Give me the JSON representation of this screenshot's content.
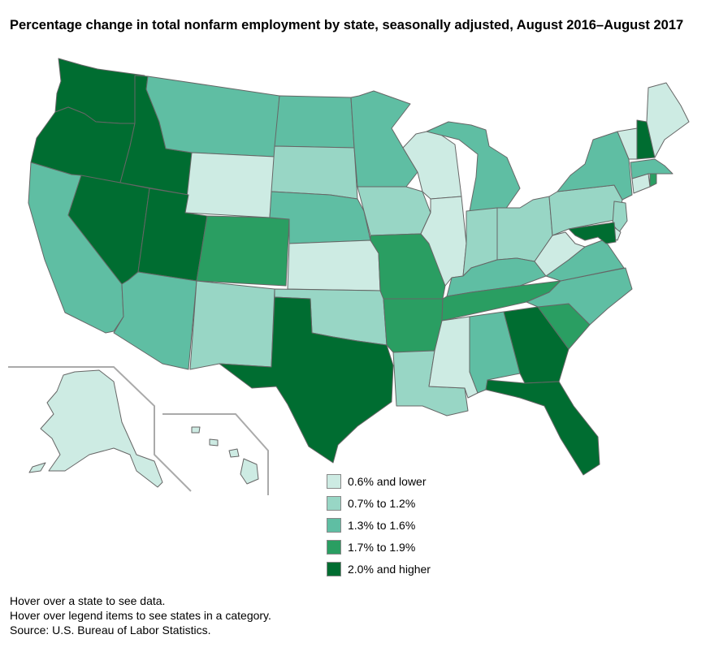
{
  "title": "Percentage change in total nonfarm employment by state, seasonally adjusted, August 2016–August 2017",
  "legend": [
    {
      "label": "0.6% and lower",
      "color": "#cdebe3"
    },
    {
      "label": "0.7% to 1.2%",
      "color": "#98d6c5"
    },
    {
      "label": "1.3% to 1.6%",
      "color": "#5fbea3"
    },
    {
      "label": "1.7% to 1.9%",
      "color": "#2a9e62"
    },
    {
      "label": "2.0% and higher",
      "color": "#006d31"
    }
  ],
  "state_categories": {
    "WA": 4,
    "OR": 4,
    "ID": 4,
    "NV": 4,
    "UT": 4,
    "TX": 4,
    "GA": 4,
    "FL": 4,
    "NH": 4,
    "MD": 4,
    "CO": 3,
    "MO": 3,
    "AR": 3,
    "TN": 3,
    "SC": 3,
    "RI": 3,
    "CA": 2,
    "MT": 2,
    "ND": 2,
    "MN": 2,
    "NE": 2,
    "AZ": 2,
    "MI": 2,
    "KY": 2,
    "VA": 2,
    "NC": 2,
    "AL": 2,
    "NY": 2,
    "MA": 2,
    "SD": 1,
    "IA": 1,
    "NM": 1,
    "OK": 1,
    "LA": 1,
    "IN": 1,
    "OH": 1,
    "PA": 1,
    "NJ": 1,
    "WY": 0,
    "KS": 0,
    "WI": 0,
    "IL": 0,
    "MS": 0,
    "WV": 0,
    "ME": 0,
    "VT": 0,
    "CT": 0,
    "DE": 0,
    "AK": 0,
    "HI": 0
  },
  "notes": {
    "hover_state": "Hover over a state to see data.",
    "hover_legend": "Hover over legend items to see states in a category.",
    "source": "Source: U.S. Bureau of Labor Statistics."
  }
}
